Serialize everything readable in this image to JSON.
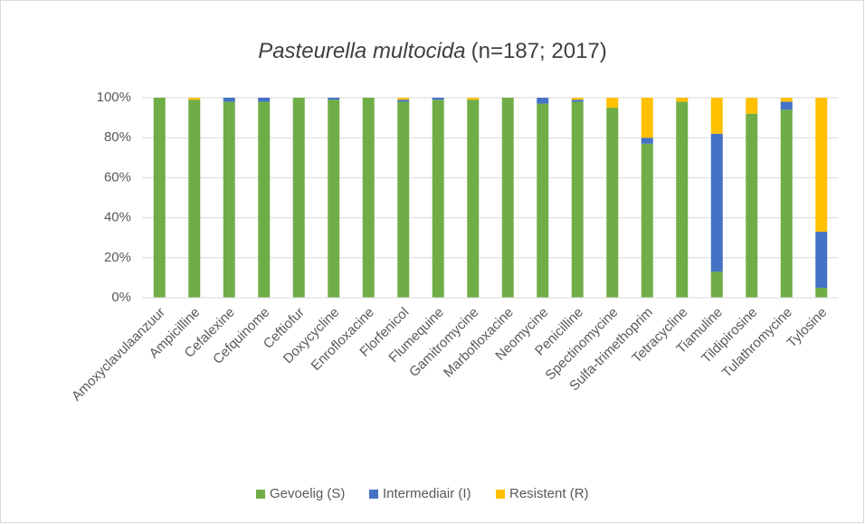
{
  "chart_data": {
    "type": "stacked_bar",
    "title": [
      "Pasteurella multocida",
      "(n=187; 2017)"
    ],
    "categories": [
      "Amoxyclavulaanzuur",
      "Ampicilline",
      "Cefalexine",
      "Cefquinome",
      "Ceftiofur",
      "Doxycycline",
      "Enrofloxacine",
      "Florfenicol",
      "Flumequine",
      "Gamitromycine",
      "Marbofloxacine",
      "Neomycine",
      "Penicilline",
      "Spectinomycine",
      "Sulfa-trimethoprim",
      "Tetracycline",
      "Tiamuline",
      "Tildipirosine",
      "Tulathromycine",
      "Tylosine"
    ],
    "series": [
      {
        "name": "Gevoelig (S)",
        "color": "#70ad47",
        "values": [
          100,
          99,
          98,
          98,
          100,
          99,
          100,
          98,
          99,
          99,
          100,
          97,
          98,
          95,
          77,
          98,
          13,
          92,
          94,
          5
        ]
      },
      {
        "name": "Intermediair (I)",
        "color": "#4472c4",
        "values": [
          0,
          0,
          2,
          2,
          0,
          1,
          0,
          1,
          1,
          0,
          0,
          3,
          1,
          0,
          3,
          0,
          69,
          0,
          4,
          28
        ]
      },
      {
        "name": "Resistent (R)",
        "color": "#ffc000",
        "values": [
          0,
          1,
          0,
          0,
          0,
          0,
          0,
          1,
          0,
          1,
          0,
          0,
          1,
          5,
          20,
          2,
          18,
          8,
          2,
          67
        ]
      }
    ],
    "ylim": [
      0,
      100
    ],
    "yticks": [
      {
        "value": 0,
        "label": "0%"
      },
      {
        "value": 20,
        "label": "20%"
      },
      {
        "value": 40,
        "label": "40%"
      },
      {
        "value": 60,
        "label": "60%"
      },
      {
        "value": 80,
        "label": "80%"
      },
      {
        "value": 100,
        "label": "100%"
      }
    ],
    "grid": true,
    "legend": "bottom"
  }
}
